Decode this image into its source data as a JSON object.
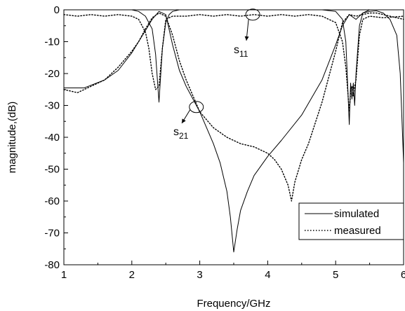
{
  "chart_data": {
    "type": "line",
    "xlabel": "Frequency/GHz",
    "ylabel": "magnitude,(dB)",
    "xlim": [
      1,
      6
    ],
    "ylim": [
      -80,
      0
    ],
    "x_ticks": [
      "1",
      "2",
      "3",
      "4",
      "5",
      "6"
    ],
    "y_ticks": [
      "0",
      "-10",
      "-20",
      "-30",
      "-40",
      "-50",
      "-60",
      "-70",
      "-80"
    ],
    "grid": false,
    "legend_position": "bottom-right",
    "annotations": {
      "s11": {
        "base": "s",
        "sub": "11",
        "target": [
          3.78,
          -1.5
        ]
      },
      "s21": {
        "base": "s",
        "sub": "21",
        "target": [
          2.95,
          -30.5
        ]
      }
    },
    "series": [
      {
        "name": "simulated",
        "style": "solid",
        "color": "#000000",
        "curves": [
          {
            "label": "S11",
            "x": [
              1.0,
              1.5,
              2.0,
              2.1,
              2.2,
              2.3,
              2.35,
              2.4,
              2.45,
              2.5,
              2.55,
              2.6,
              2.7,
              3.0,
              3.5,
              4.0,
              4.5,
              4.8,
              5.0,
              5.1,
              5.15,
              5.18,
              5.2,
              5.22,
              5.24,
              5.26,
              5.28,
              5.3,
              5.35,
              5.4,
              5.5,
              6.0
            ],
            "y": [
              0,
              0,
              0,
              -0.5,
              -2,
              -6,
              -14,
              -29,
              -12,
              -4,
              -1.5,
              -0.5,
              0,
              0,
              0,
              0,
              0,
              0,
              -0.5,
              -3,
              -10,
              -25,
              -36,
              -23,
              -28,
              -23,
              -30,
              -20,
              -5,
              -1,
              0,
              0
            ]
          },
          {
            "label": "S21",
            "x": [
              1.0,
              1.3,
              1.6,
              1.8,
              2.0,
              2.1,
              2.2,
              2.3,
              2.4,
              2.5,
              2.6,
              2.7,
              2.8,
              2.9,
              3.0,
              3.1,
              3.2,
              3.3,
              3.4,
              3.45,
              3.5,
              3.55,
              3.6,
              3.7,
              3.8,
              4.0,
              4.2,
              4.5,
              4.8,
              5.0,
              5.1,
              5.2,
              5.3,
              5.4,
              5.5,
              5.6,
              5.7,
              5.8,
              5.9,
              5.95,
              6.0
            ],
            "y": [
              -24.5,
              -24.5,
              -22,
              -19,
              -13.5,
              -10,
              -6.5,
              -3,
              -0.5,
              -1.5,
              -11,
              -19,
              -24,
              -28,
              -32,
              -37,
              -42,
              -48,
              -57,
              -65,
              -76,
              -69,
              -63,
              -57,
              -52,
              -46,
              -41,
              -33,
              -22,
              -11,
              -5,
              -1.5,
              -3,
              -1,
              -0.5,
              -0.3,
              -1,
              -3,
              -8,
              -20,
              -48
            ]
          }
        ]
      },
      {
        "name": "measured",
        "style": "dotted",
        "color": "#000000",
        "curves": [
          {
            "label": "S11",
            "x": [
              1.0,
              1.2,
              1.4,
              1.6,
              1.8,
              2.0,
              2.1,
              2.2,
              2.25,
              2.3,
              2.35,
              2.4,
              2.45,
              2.5,
              2.6,
              2.8,
              3.0,
              3.2,
              3.4,
              3.6,
              3.8,
              4.0,
              4.2,
              4.4,
              4.6,
              4.8,
              5.0,
              5.1,
              5.15,
              5.18,
              5.2,
              5.22,
              5.24,
              5.26,
              5.28,
              5.3,
              5.35,
              5.4,
              5.5,
              5.7,
              6.0
            ],
            "y": [
              -1.5,
              -2,
              -1.5,
              -2,
              -1.5,
              -2,
              -3,
              -7,
              -12,
              -20,
              -25,
              -24,
              -12,
              -3,
              -2,
              -2,
              -1.5,
              -2,
              -1.5,
              -2,
              -1.5,
              -2,
              -1.5,
              -2,
              -1.5,
              -2,
              -4,
              -10,
              -18,
              -26,
              -32,
              -26,
              -24,
              -27,
              -24,
              -22,
              -8,
              -3,
              -2,
              -2.5,
              -2
            ]
          },
          {
            "label": "S21",
            "x": [
              1.0,
              1.2,
              1.4,
              1.6,
              1.8,
              2.0,
              2.1,
              2.2,
              2.3,
              2.4,
              2.5,
              2.6,
              2.7,
              2.8,
              3.0,
              3.2,
              3.4,
              3.6,
              3.8,
              4.0,
              4.1,
              4.2,
              4.3,
              4.35,
              4.4,
              4.5,
              4.6,
              4.8,
              5.0,
              5.1,
              5.2,
              5.3,
              5.4,
              5.5,
              5.6,
              5.7,
              5.8,
              5.9,
              6.0
            ],
            "y": [
              -25,
              -26,
              -24,
              -22,
              -18,
              -13,
              -10,
              -6,
              -2.5,
              -1,
              -2,
              -8,
              -16,
              -22,
              -32,
              -37,
              -40,
              -42,
              -43,
              -45,
              -47,
              -50,
              -55,
              -60,
              -54,
              -47,
              -42,
              -29,
              -13,
              -4,
              -1.5,
              -2,
              -1.5,
              -1,
              -1,
              -1.5,
              -2,
              -2.5,
              -3
            ]
          }
        ]
      }
    ]
  }
}
